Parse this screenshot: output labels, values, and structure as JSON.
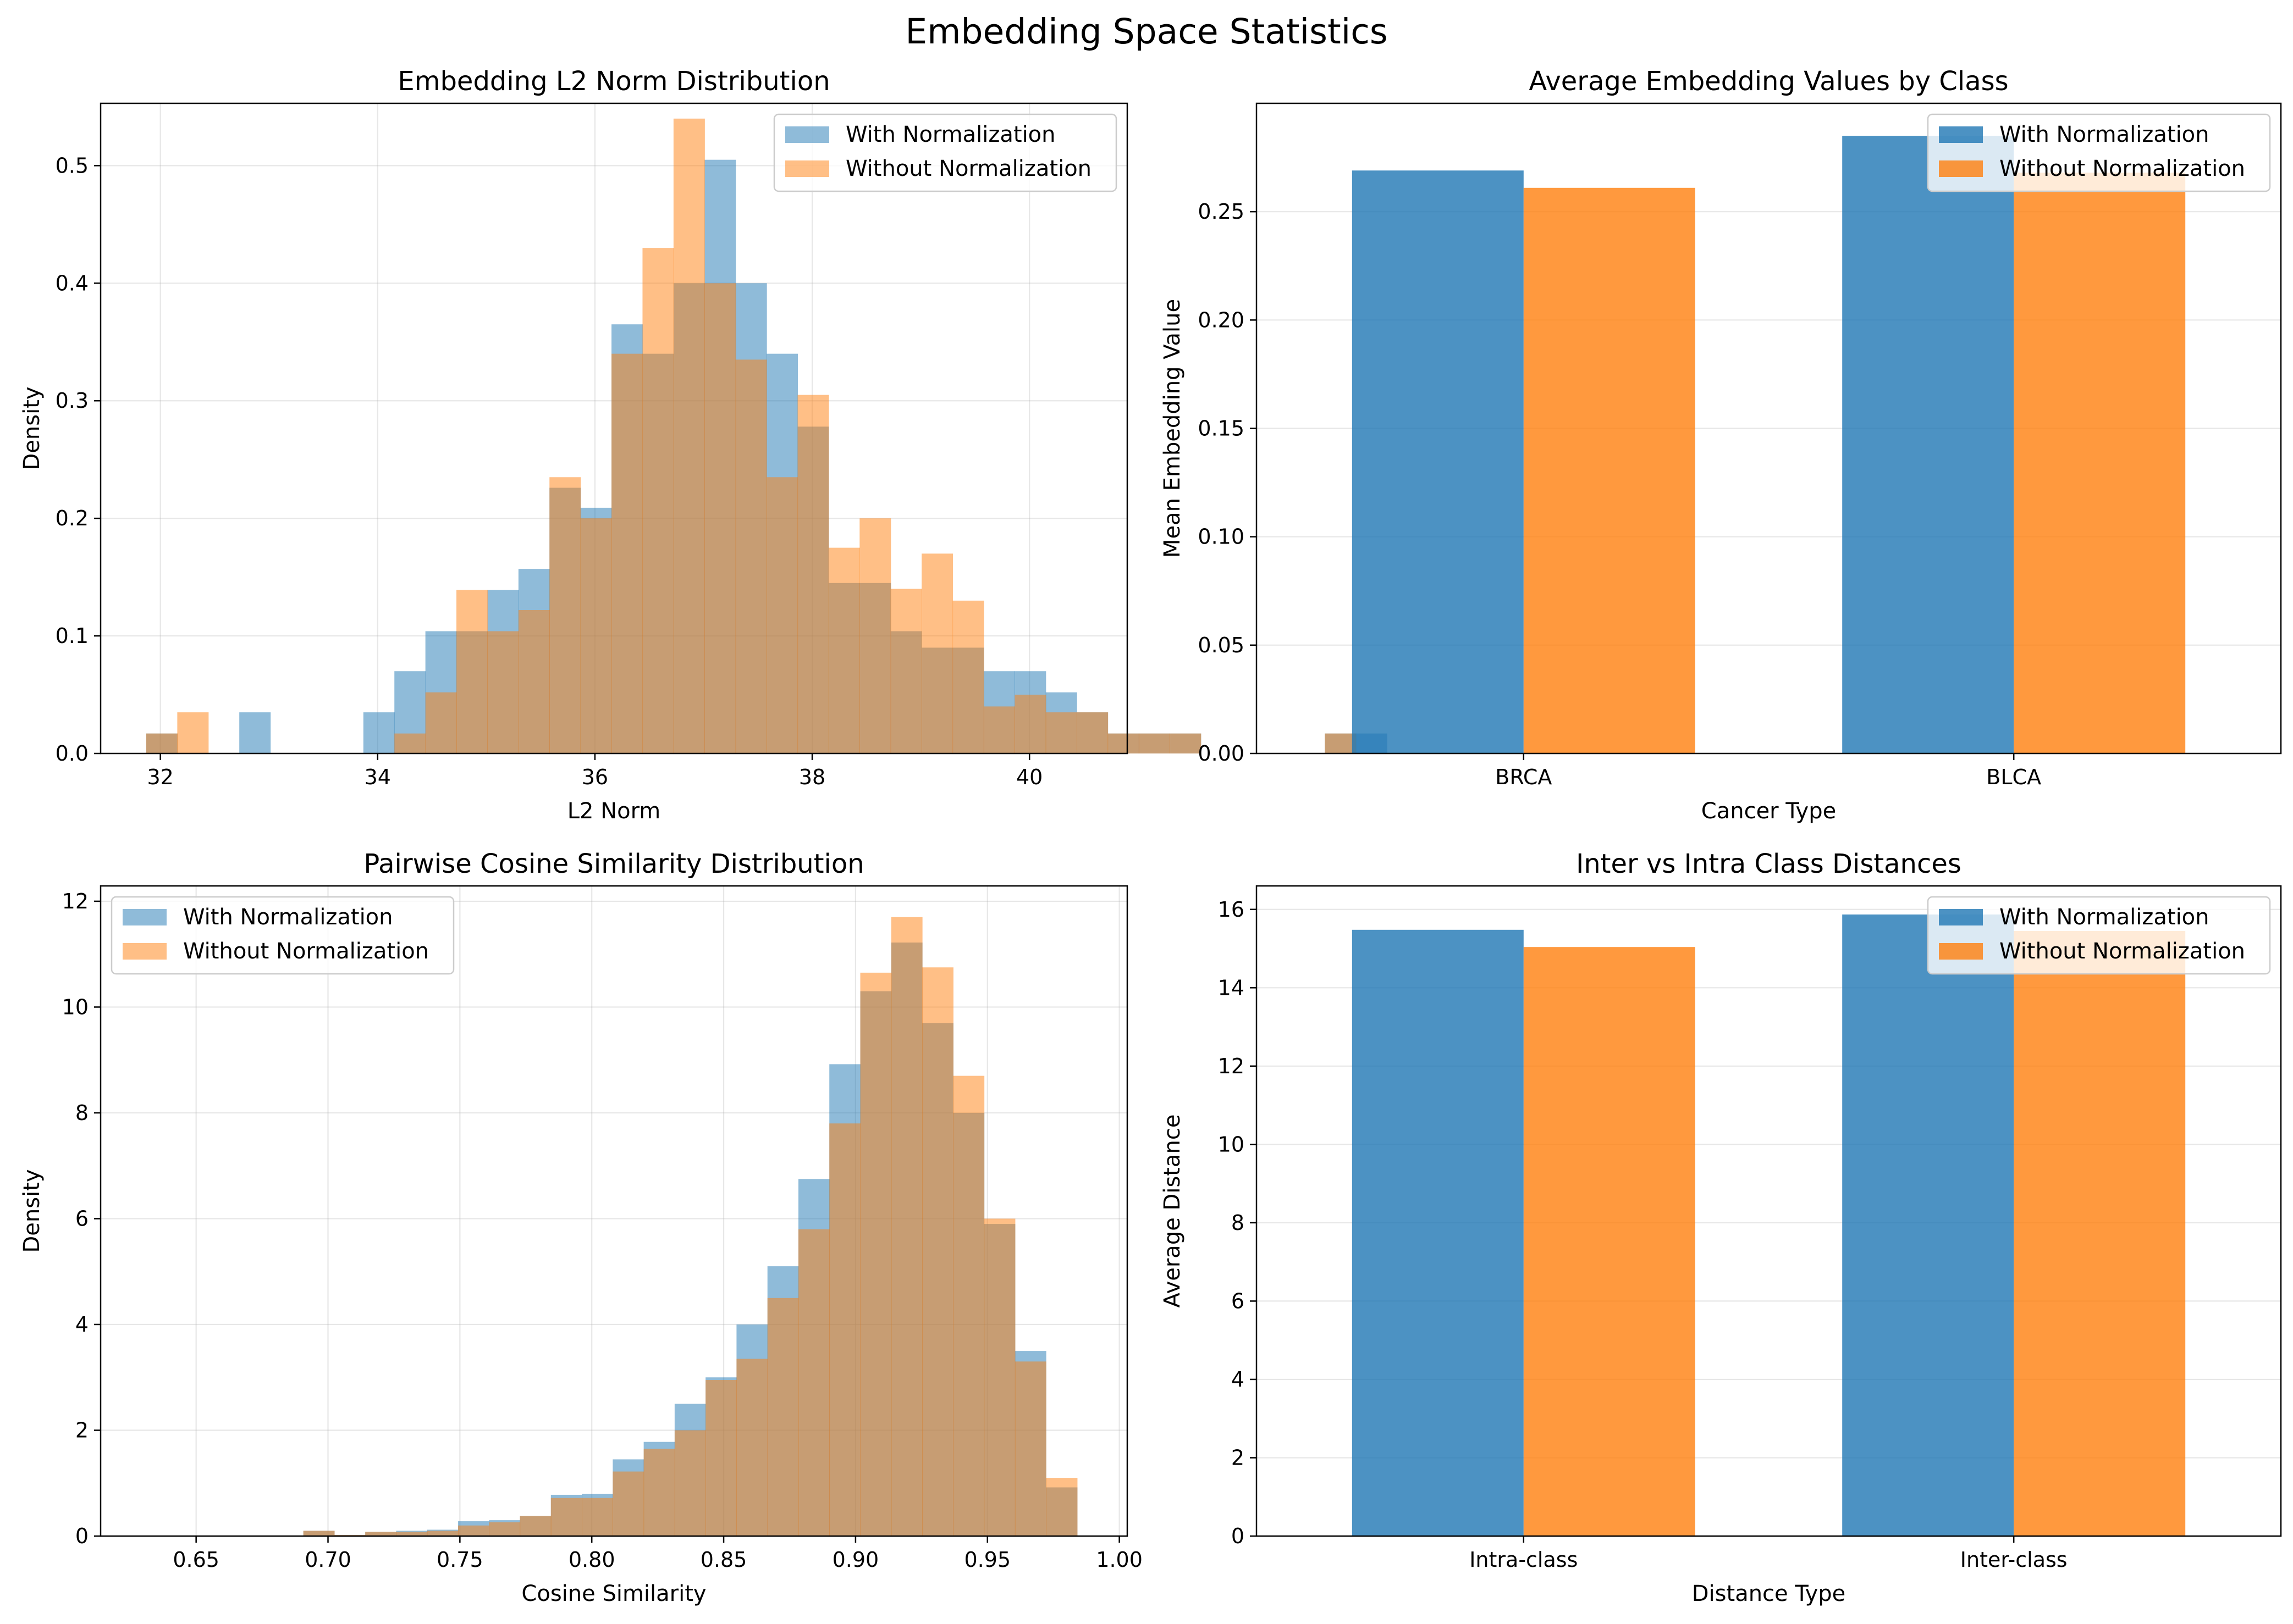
{
  "suptitle": "Embedding Space Statistics",
  "colors": {
    "hist_with": "#1f77b4",
    "hist_without": "#ff7f0e",
    "hist_alpha": 0.5,
    "bar_with": "#1f77b4",
    "bar_without": "#ff7f0e",
    "bar_alpha": 0.8,
    "grid": "#b0b0b0"
  },
  "chart_data": [
    {
      "type": "histogram",
      "title": "Embedding L2 Norm Distribution",
      "xlabel": "L2 Norm",
      "ylabel": "Density",
      "xlim": [
        31.45,
        40.9
      ],
      "ylim": [
        0,
        0.553
      ],
      "xticks": [
        32,
        34,
        36,
        38,
        40
      ],
      "xtick_labels": [
        "32",
        "34",
        "36",
        "38",
        "40"
      ],
      "yticks": [
        0,
        0.1,
        0.2,
        0.3,
        0.4,
        0.5
      ],
      "ytick_labels": [
        "0.0",
        "0.1",
        "0.2",
        "0.3",
        "0.4",
        "0.5"
      ],
      "grid": true,
      "legend": "upper right",
      "series": [
        {
          "name": "With Normalization",
          "bin_start": 31.87,
          "bin_width": 0.2855,
          "density": [
            0.017,
            0,
            0,
            0.035,
            0,
            0,
            0,
            0.035,
            0.07,
            0.104,
            0.104,
            0.139,
            0.157,
            0.226,
            0.209,
            0.365,
            0.34,
            0.4,
            0.505,
            0.4,
            0.34,
            0.278,
            0.145,
            0.145,
            0.104,
            0.09,
            0.09,
            0.07,
            0.07,
            0.052,
            0.035,
            0.017,
            0.017,
            0.017,
            0,
            0,
            0,
            0,
            0.017,
            0.017
          ]
        },
        {
          "name": "Without Normalization",
          "bin_start": 31.87,
          "bin_width": 0.2855,
          "density": [
            0.017,
            0.035,
            0,
            0,
            0,
            0,
            0,
            0,
            0.017,
            0.052,
            0.139,
            0.104,
            0.122,
            0.235,
            0.2,
            0.34,
            0.43,
            0.54,
            0.4,
            0.335,
            0.235,
            0.305,
            0.175,
            0.2,
            0.14,
            0.17,
            0.13,
            0.04,
            0.05,
            0.035,
            0.035,
            0.017,
            0.017,
            0.017,
            0,
            0,
            0,
            0,
            0.017,
            0
          ]
        }
      ]
    },
    {
      "type": "bar",
      "title": "Average Embedding Values by Class",
      "xlabel": "Cancer Type",
      "ylabel": "Mean Embedding Value",
      "categories": [
        "BRCA",
        "BLCA"
      ],
      "ylim": [
        0,
        0.3
      ],
      "yticks": [
        0,
        0.05,
        0.1,
        0.15,
        0.2,
        0.25
      ],
      "ytick_labels": [
        "0.00",
        "0.05",
        "0.10",
        "0.15",
        "0.20",
        "0.25"
      ],
      "grid": true,
      "legend": "upper right",
      "series": [
        {
          "name": "With Normalization",
          "values": [
            0.269,
            0.285
          ]
        },
        {
          "name": "Without Normalization",
          "values": [
            0.261,
            0.268
          ]
        }
      ]
    },
    {
      "type": "histogram",
      "title": "Pairwise Cosine Similarity Distribution",
      "xlabel": "Cosine Similarity",
      "ylabel": "Density",
      "xlim": [
        0.6138,
        1.003
      ],
      "ylim": [
        0,
        12.29
      ],
      "xticks": [
        0.65,
        0.7,
        0.75,
        0.8,
        0.85,
        0.9,
        0.95,
        1.0
      ],
      "xtick_labels": [
        "0.65",
        "0.70",
        "0.75",
        "0.80",
        "0.85",
        "0.90",
        "0.95",
        "1.00"
      ],
      "yticks": [
        0,
        2,
        4,
        6,
        8,
        10,
        12
      ],
      "ytick_labels": [
        "0",
        "2",
        "4",
        "6",
        "8",
        "10",
        "12"
      ],
      "grid": true,
      "legend": "upper left",
      "series": [
        {
          "name": "With Normalization",
          "bin_start": 0.632,
          "bin_width": 0.01173,
          "density": [
            0,
            0,
            0,
            0,
            0,
            0.1,
            0.02,
            0.08,
            0.1,
            0.12,
            0.28,
            0.3,
            0.38,
            0.78,
            0.8,
            1.45,
            1.78,
            2.5,
            3.0,
            4.0,
            5.1,
            6.75,
            8.92,
            10.3,
            11.22,
            9.7,
            8.0,
            5.9,
            3.5,
            0.92
          ],
          "last_bin_end": 0.984
        },
        {
          "name": "Without Normalization",
          "bin_start": 0.632,
          "bin_width": 0.01173,
          "density": [
            0,
            0,
            0,
            0,
            0,
            0.1,
            0.02,
            0.08,
            0.08,
            0.1,
            0.2,
            0.26,
            0.38,
            0.72,
            0.72,
            1.22,
            1.65,
            2.0,
            2.95,
            3.35,
            4.5,
            5.8,
            7.8,
            10.65,
            11.7,
            10.75,
            8.7,
            6.0,
            3.3,
            1.1
          ],
          "last_bin_end": 0.984
        }
      ]
    },
    {
      "type": "bar",
      "title": "Inter vs Intra Class Distances",
      "xlabel": "Distance Type",
      "ylabel": "Average Distance",
      "categories": [
        "Intra-class",
        "Inter-class"
      ],
      "ylim": [
        0,
        16.6
      ],
      "yticks": [
        0,
        2,
        4,
        6,
        8,
        10,
        12,
        14,
        16
      ],
      "ytick_labels": [
        "0",
        "2",
        "4",
        "6",
        "8",
        "10",
        "12",
        "14",
        "16"
      ],
      "grid": true,
      "legend": "upper right",
      "series": [
        {
          "name": "With Normalization",
          "values": [
            15.48,
            15.87
          ]
        },
        {
          "name": "Without Normalization",
          "values": [
            15.04,
            15.45
          ]
        }
      ]
    }
  ]
}
